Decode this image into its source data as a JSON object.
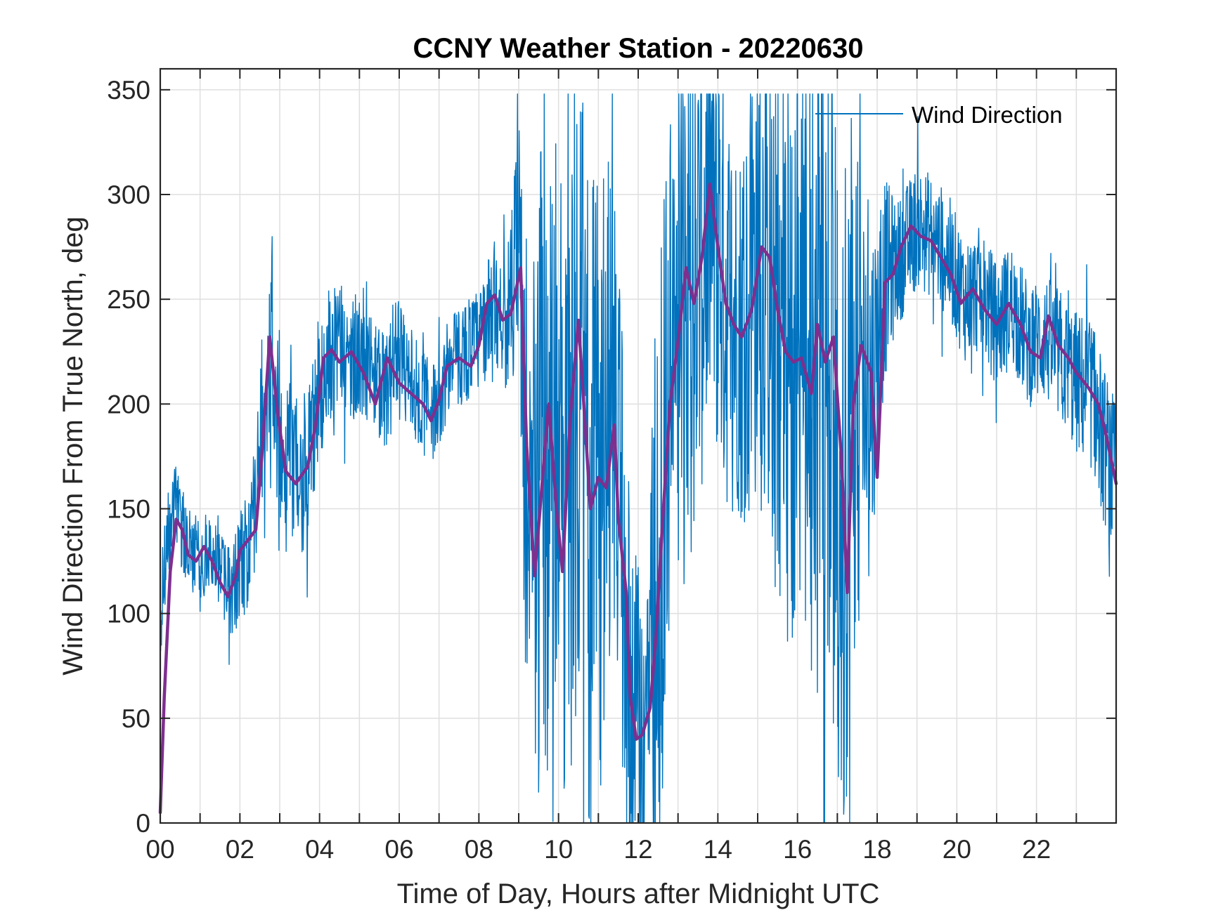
{
  "chart_data": {
    "type": "line",
    "title": "CCNY Weather Station - 20220630",
    "xlabel": "Time of Day, Hours after Midnight UTC",
    "ylabel": "Wind Direction From True North, deg",
    "xlim": [
      0,
      24
    ],
    "ylim": [
      0,
      360
    ],
    "xticks": [
      0,
      2,
      4,
      6,
      8,
      10,
      12,
      14,
      16,
      18,
      20,
      22
    ],
    "xtick_labels": [
      "00",
      "02",
      "04",
      "06",
      "08",
      "10",
      "12",
      "14",
      "16",
      "18",
      "20",
      "22"
    ],
    "yticks": [
      0,
      50,
      100,
      150,
      200,
      250,
      300,
      350
    ],
    "ytick_labels": [
      "0",
      "50",
      "100",
      "150",
      "200",
      "250",
      "300",
      "350"
    ],
    "grid": true,
    "legend": {
      "position": "top-right",
      "entries": [
        "Wind Direction"
      ]
    },
    "colors": {
      "raw": "#0072bd",
      "smoothed": "#7e2f8e",
      "axis": "#262626",
      "grid": "#dfdfdf"
    },
    "series": [
      {
        "name": "Wind Direction",
        "style": "thin",
        "spread": [
          [
            0.0,
            25
          ],
          [
            0.5,
            20
          ],
          [
            1.0,
            20
          ],
          [
            1.5,
            20
          ],
          [
            2.0,
            25
          ],
          [
            2.5,
            35
          ],
          [
            3.0,
            45
          ],
          [
            3.5,
            40
          ],
          [
            4.0,
            35
          ],
          [
            5.0,
            30
          ],
          [
            6.0,
            28
          ],
          [
            7.0,
            25
          ],
          [
            8.0,
            25
          ],
          [
            8.8,
            35
          ],
          [
            9.0,
            80
          ],
          [
            9.3,
            150
          ],
          [
            10.0,
            170
          ],
          [
            11.0,
            160
          ],
          [
            11.5,
            120
          ],
          [
            12.0,
            90
          ],
          [
            12.5,
            150
          ],
          [
            13.0,
            140
          ],
          [
            13.5,
            120
          ],
          [
            14.0,
            110
          ],
          [
            14.5,
            90
          ],
          [
            15.0,
            120
          ],
          [
            16.0,
            150
          ],
          [
            17.0,
            160
          ],
          [
            17.5,
            150
          ],
          [
            18.0,
            60
          ],
          [
            18.5,
            30
          ],
          [
            20.0,
            30
          ],
          [
            22.0,
            30
          ],
          [
            23.0,
            35
          ],
          [
            24.0,
            40
          ]
        ],
        "points": [
          [
            0.0,
            100
          ],
          [
            0.2,
            140
          ],
          [
            0.4,
            150
          ],
          [
            0.7,
            130
          ],
          [
            1.0,
            125
          ],
          [
            1.3,
            130
          ],
          [
            1.7,
            110
          ],
          [
            2.0,
            120
          ],
          [
            2.3,
            135
          ],
          [
            2.6,
            200
          ],
          [
            2.8,
            230
          ],
          [
            3.1,
            175
          ],
          [
            3.4,
            165
          ],
          [
            3.7,
            170
          ],
          [
            4.0,
            210
          ],
          [
            4.4,
            230
          ],
          [
            4.8,
            225
          ],
          [
            5.2,
            215
          ],
          [
            5.6,
            205
          ],
          [
            6.0,
            220
          ],
          [
            6.4,
            210
          ],
          [
            6.8,
            195
          ],
          [
            7.2,
            215
          ],
          [
            7.6,
            225
          ],
          [
            8.0,
            230
          ],
          [
            8.4,
            250
          ],
          [
            8.7,
            240
          ],
          [
            9.0,
            270
          ],
          [
            9.3,
            120
          ],
          [
            9.6,
            180
          ],
          [
            9.9,
            160
          ],
          [
            10.2,
            130
          ],
          [
            10.5,
            230
          ],
          [
            10.8,
            150
          ],
          [
            11.1,
            170
          ],
          [
            11.4,
            185
          ],
          [
            11.7,
            100
          ],
          [
            11.9,
            45
          ],
          [
            12.2,
            50
          ],
          [
            12.6,
            150
          ],
          [
            13.0,
            260
          ],
          [
            13.4,
            250
          ],
          [
            13.8,
            300
          ],
          [
            14.2,
            250
          ],
          [
            14.6,
            235
          ],
          [
            15.0,
            270
          ],
          [
            15.4,
            255
          ],
          [
            15.8,
            225
          ],
          [
            16.2,
            225
          ],
          [
            16.5,
            215
          ],
          [
            16.8,
            235
          ],
          [
            17.1,
            120
          ],
          [
            17.4,
            230
          ],
          [
            17.8,
            200
          ],
          [
            18.2,
            260
          ],
          [
            18.6,
            270
          ],
          [
            19.0,
            285
          ],
          [
            19.4,
            280
          ],
          [
            19.8,
            270
          ],
          [
            20.2,
            250
          ],
          [
            20.6,
            255
          ],
          [
            21.0,
            238
          ],
          [
            21.4,
            248
          ],
          [
            21.8,
            228
          ],
          [
            22.2,
            232
          ],
          [
            22.6,
            222
          ],
          [
            23.0,
            210
          ],
          [
            23.4,
            205
          ],
          [
            23.7,
            180
          ],
          [
            24.0,
            160
          ]
        ]
      },
      {
        "name": "",
        "style": "thick",
        "points": [
          [
            0.0,
            5
          ],
          [
            0.1,
            60
          ],
          [
            0.25,
            120
          ],
          [
            0.4,
            145
          ],
          [
            0.55,
            140
          ],
          [
            0.7,
            128
          ],
          [
            0.9,
            125
          ],
          [
            1.1,
            132
          ],
          [
            1.3,
            125
          ],
          [
            1.5,
            115
          ],
          [
            1.7,
            108
          ],
          [
            1.9,
            118
          ],
          [
            2.0,
            130
          ],
          [
            2.2,
            135
          ],
          [
            2.4,
            140
          ],
          [
            2.55,
            175
          ],
          [
            2.75,
            232
          ],
          [
            2.95,
            195
          ],
          [
            3.15,
            168
          ],
          [
            3.4,
            162
          ],
          [
            3.7,
            170
          ],
          [
            3.9,
            190
          ],
          [
            4.1,
            222
          ],
          [
            4.3,
            226
          ],
          [
            4.5,
            220
          ],
          [
            4.8,
            225
          ],
          [
            5.1,
            215
          ],
          [
            5.4,
            200
          ],
          [
            5.7,
            222
          ],
          [
            6.0,
            210
          ],
          [
            6.3,
            205
          ],
          [
            6.6,
            200
          ],
          [
            6.8,
            192
          ],
          [
            7.0,
            202
          ],
          [
            7.2,
            218
          ],
          [
            7.5,
            222
          ],
          [
            7.8,
            218
          ],
          [
            8.0,
            228
          ],
          [
            8.2,
            248
          ],
          [
            8.4,
            252
          ],
          [
            8.6,
            240
          ],
          [
            8.8,
            243
          ],
          [
            9.05,
            265
          ],
          [
            9.2,
            180
          ],
          [
            9.4,
            118
          ],
          [
            9.6,
            165
          ],
          [
            9.75,
            200
          ],
          [
            9.95,
            150
          ],
          [
            10.1,
            120
          ],
          [
            10.3,
            195
          ],
          [
            10.5,
            240
          ],
          [
            10.6,
            210
          ],
          [
            10.8,
            150
          ],
          [
            11.0,
            165
          ],
          [
            11.2,
            160
          ],
          [
            11.4,
            190
          ],
          [
            11.5,
            145
          ],
          [
            11.7,
            110
          ],
          [
            11.8,
            60
          ],
          [
            11.95,
            40
          ],
          [
            12.1,
            42
          ],
          [
            12.3,
            55
          ],
          [
            12.45,
            90
          ],
          [
            12.6,
            140
          ],
          [
            12.8,
            200
          ],
          [
            13.0,
            230
          ],
          [
            13.2,
            265
          ],
          [
            13.4,
            248
          ],
          [
            13.6,
            270
          ],
          [
            13.8,
            305
          ],
          [
            14.0,
            275
          ],
          [
            14.2,
            248
          ],
          [
            14.4,
            238
          ],
          [
            14.6,
            232
          ],
          [
            14.85,
            245
          ],
          [
            15.1,
            275
          ],
          [
            15.3,
            270
          ],
          [
            15.5,
            245
          ],
          [
            15.7,
            225
          ],
          [
            15.9,
            220
          ],
          [
            16.1,
            222
          ],
          [
            16.35,
            205
          ],
          [
            16.5,
            238
          ],
          [
            16.7,
            220
          ],
          [
            16.9,
            232
          ],
          [
            17.1,
            175
          ],
          [
            17.25,
            110
          ],
          [
            17.4,
            200
          ],
          [
            17.6,
            228
          ],
          [
            17.85,
            215
          ],
          [
            18.0,
            165
          ],
          [
            18.2,
            258
          ],
          [
            18.4,
            262
          ],
          [
            18.6,
            275
          ],
          [
            18.85,
            285
          ],
          [
            19.1,
            280
          ],
          [
            19.35,
            278
          ],
          [
            19.6,
            270
          ],
          [
            19.85,
            262
          ],
          [
            20.1,
            248
          ],
          [
            20.4,
            255
          ],
          [
            20.7,
            245
          ],
          [
            21.0,
            238
          ],
          [
            21.3,
            248
          ],
          [
            21.6,
            238
          ],
          [
            21.85,
            225
          ],
          [
            22.1,
            222
          ],
          [
            22.3,
            242
          ],
          [
            22.55,
            228
          ],
          [
            22.8,
            222
          ],
          [
            23.0,
            215
          ],
          [
            23.3,
            208
          ],
          [
            23.55,
            200
          ],
          [
            23.75,
            185
          ],
          [
            24.0,
            162
          ]
        ]
      }
    ]
  }
}
